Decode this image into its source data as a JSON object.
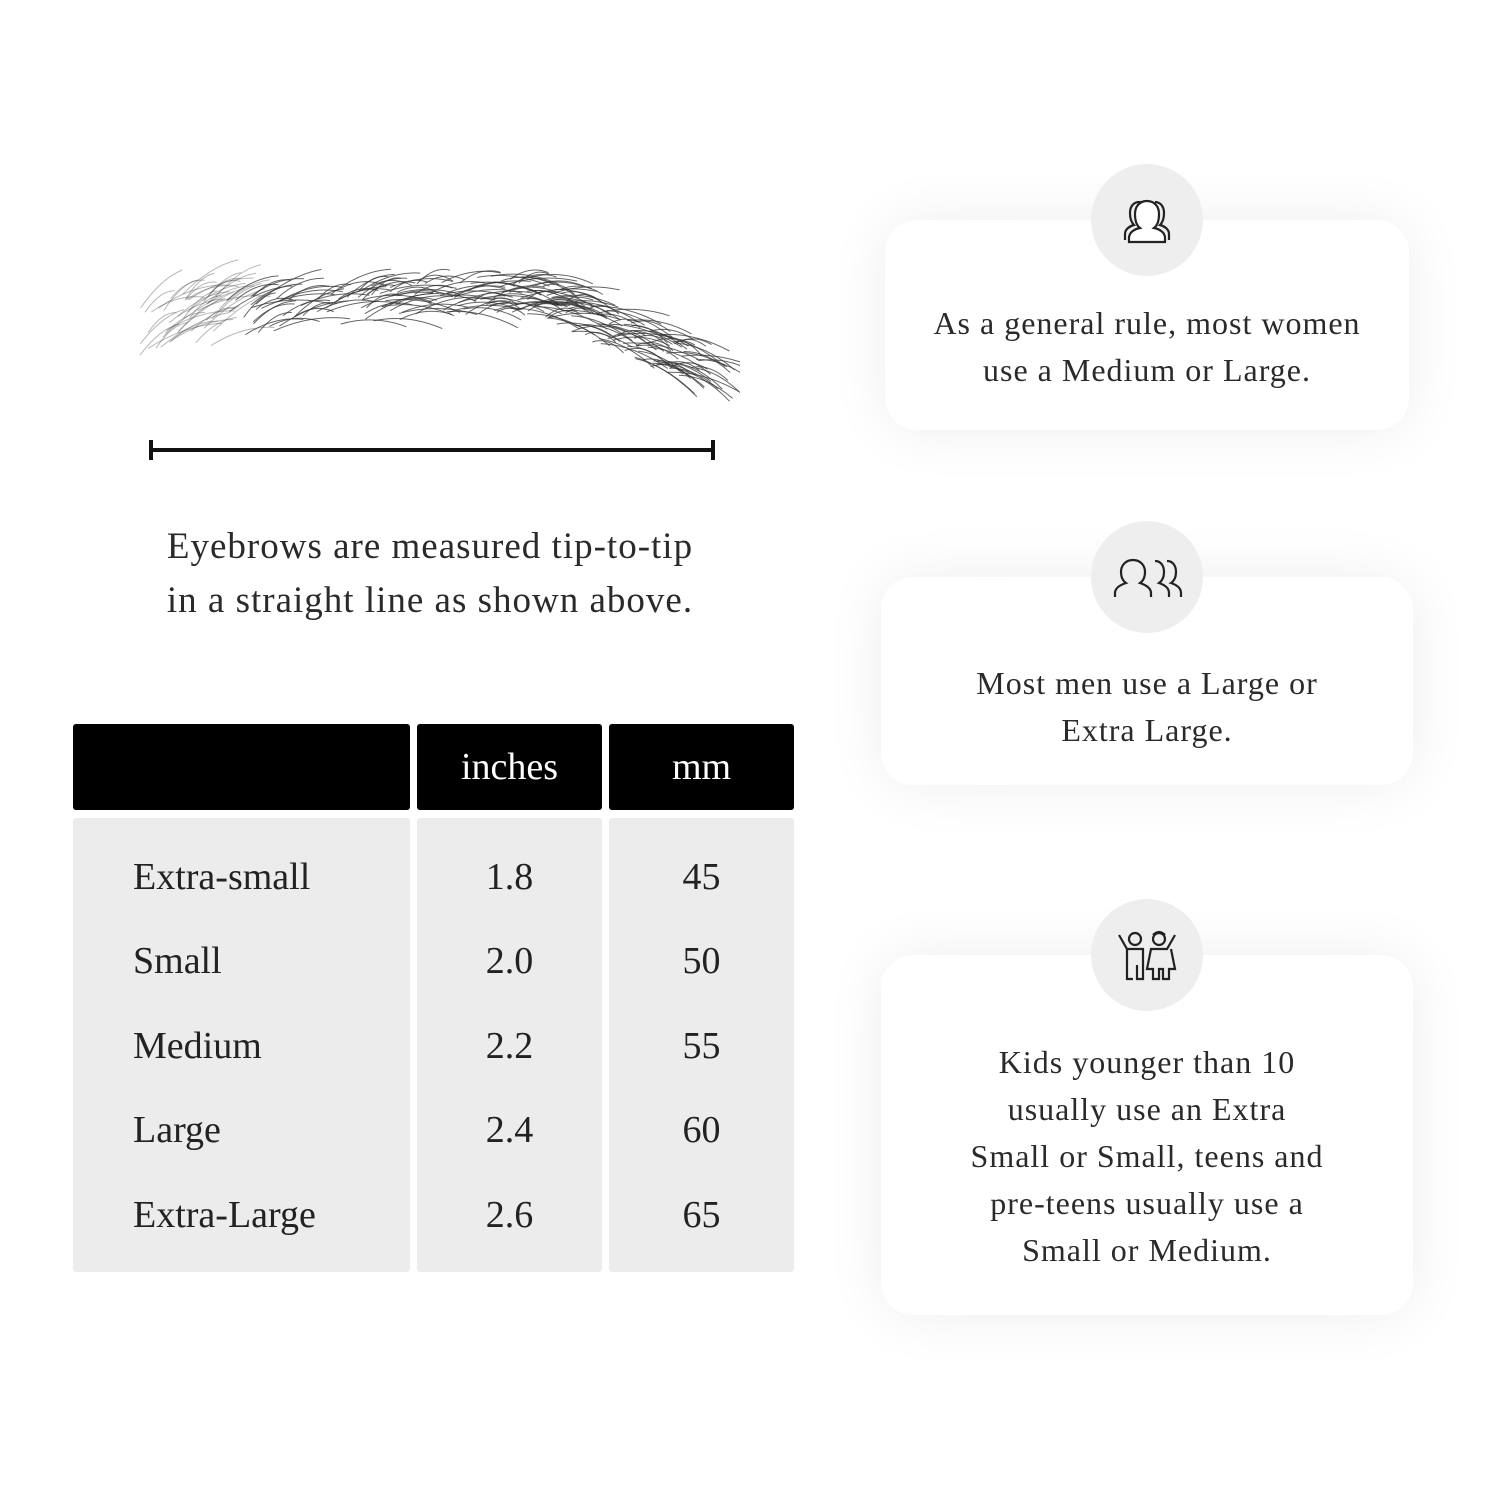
{
  "measurement": {
    "caption_lines": [
      "Eyebrows are measured tip-to-tip",
      "in a straight line as shown above."
    ]
  },
  "size_table": {
    "headers": [
      "",
      "inches",
      "mm"
    ],
    "rows": [
      {
        "size": "Extra-small",
        "inches": "1.8",
        "mm": "45"
      },
      {
        "size": "Small",
        "inches": "2.0",
        "mm": "50"
      },
      {
        "size": "Medium",
        "inches": "2.2",
        "mm": "55"
      },
      {
        "size": "Large",
        "inches": "2.4",
        "mm": "60"
      },
      {
        "size": "Extra-Large",
        "inches": "2.6",
        "mm": "65"
      }
    ]
  },
  "cards": [
    {
      "icon": "women-group-icon",
      "lines": [
        "As a general rule, most women",
        "use a Medium or Large."
      ]
    },
    {
      "icon": "men-group-icon",
      "lines": [
        "Most men use a Large or",
        "Extra Large."
      ]
    },
    {
      "icon": "kids-icon",
      "lines": [
        "Kids younger than 10",
        "usually use an Extra",
        "Small or Small, teens and",
        "pre-teens usually use a",
        "Small or Medium."
      ]
    }
  ]
}
